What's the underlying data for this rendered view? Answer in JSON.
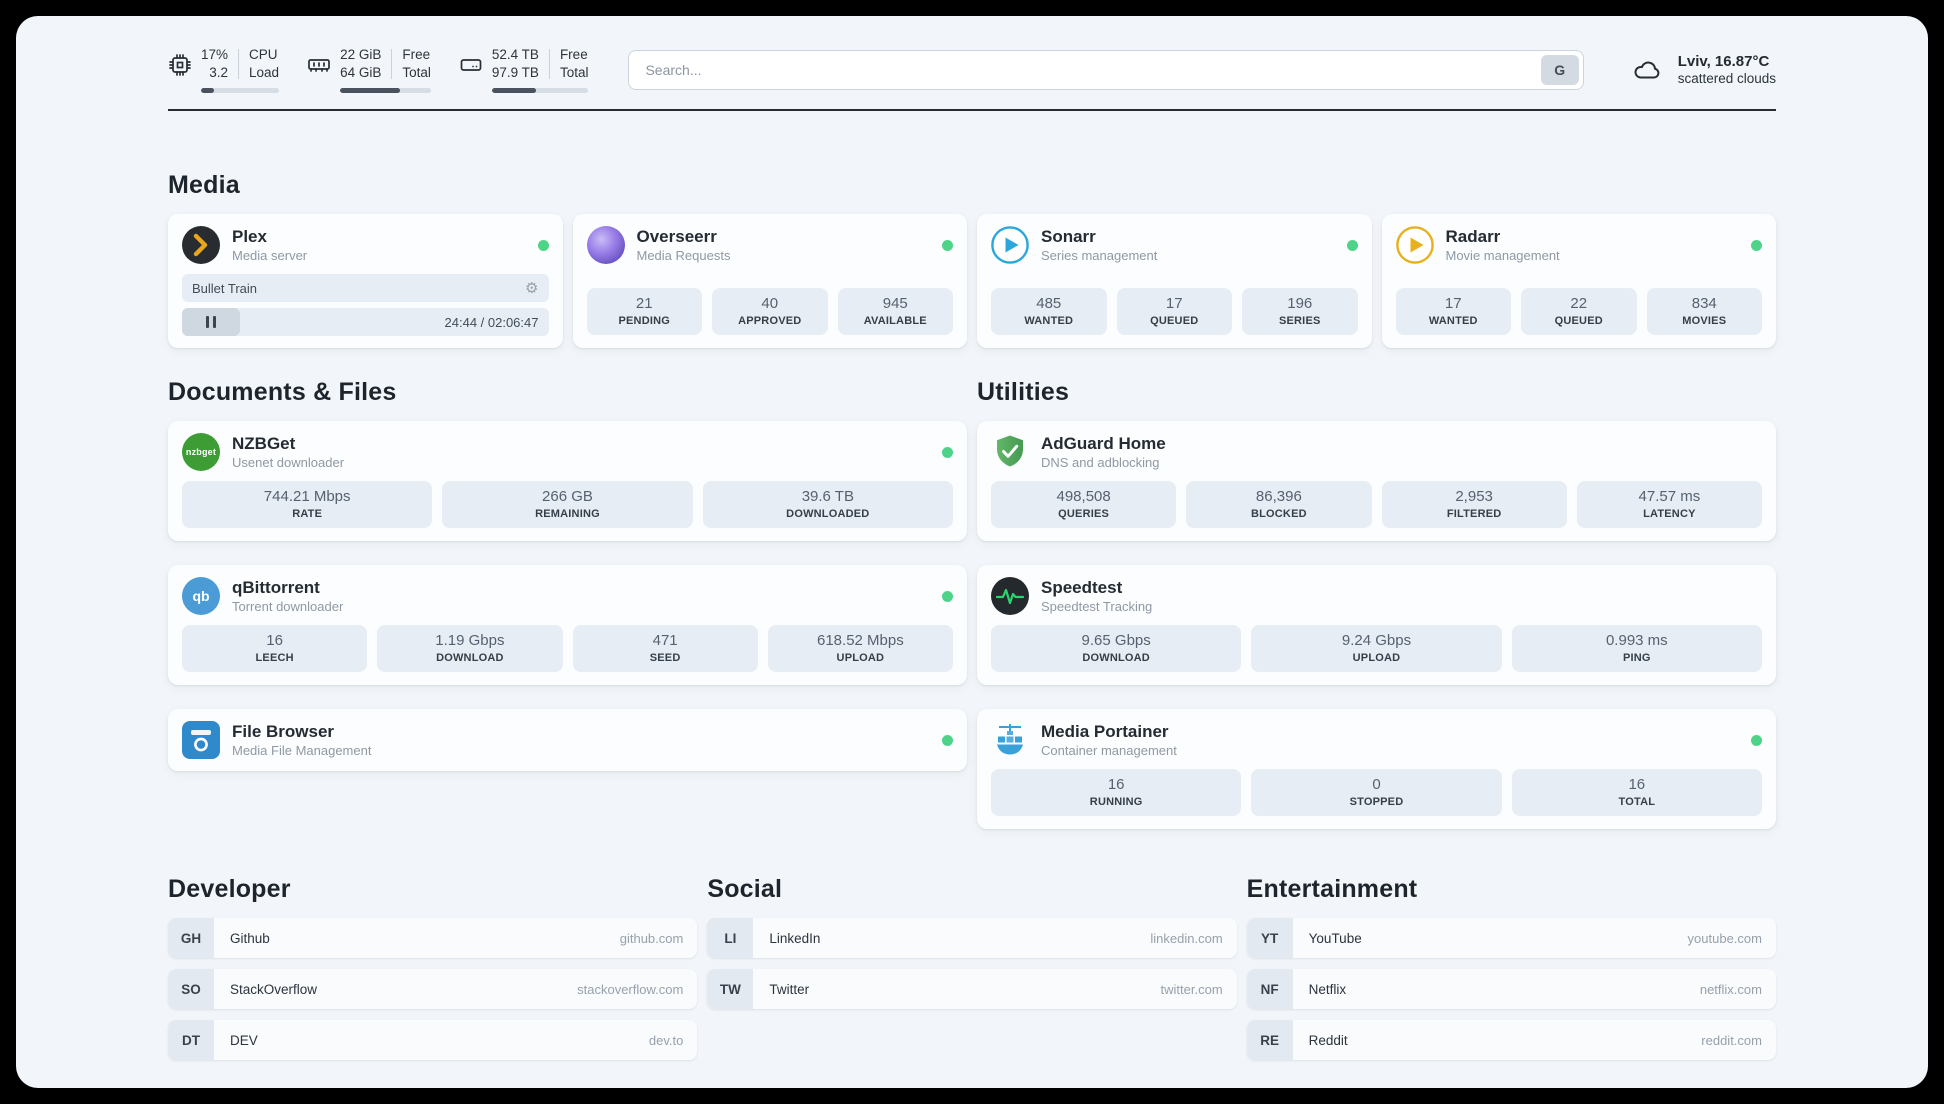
{
  "header": {
    "monitors": [
      {
        "value_top": "17%",
        "value_bottom": "3.2",
        "label_top": "CPU",
        "label_bottom": "Load",
        "progress": 17
      },
      {
        "value_top": "22 GiB",
        "value_bottom": "64 GiB",
        "label_top": "Free",
        "label_bottom": "Total",
        "progress": 66
      },
      {
        "value_top": "52.4 TB",
        "value_bottom": "97.9 TB",
        "label_top": "Free",
        "label_bottom": "Total",
        "progress": 46
      }
    ],
    "search": {
      "placeholder": "Search...",
      "button_label": "G",
      "value": ""
    },
    "weather": {
      "location": "Lviv, 16.87°C",
      "condition": "scattered clouds"
    }
  },
  "media": {
    "title": "Media",
    "plex": {
      "name": "Plex",
      "subtitle": "Media server",
      "online": true,
      "now_playing": "Bullet Train",
      "time": "24:44 / 02:06:47"
    },
    "overseerr": {
      "name": "Overseerr",
      "subtitle": "Media Requests",
      "online": true,
      "stats": [
        {
          "value": "21",
          "label": "PENDING"
        },
        {
          "value": "40",
          "label": "APPROVED"
        },
        {
          "value": "945",
          "label": "AVAILABLE"
        }
      ]
    },
    "sonarr": {
      "name": "Sonarr",
      "subtitle": "Series management",
      "online": true,
      "stats": [
        {
          "value": "485",
          "label": "WANTED"
        },
        {
          "value": "17",
          "label": "QUEUED"
        },
        {
          "value": "196",
          "label": "SERIES"
        }
      ]
    },
    "radarr": {
      "name": "Radarr",
      "subtitle": "Movie management",
      "online": true,
      "stats": [
        {
          "value": "17",
          "label": "WANTED"
        },
        {
          "value": "22",
          "label": "QUEUED"
        },
        {
          "value": "834",
          "label": "MOVIES"
        }
      ]
    }
  },
  "documents": {
    "title": "Documents & Files",
    "nzbget": {
      "name": "NZBGet",
      "subtitle": "Usenet downloader",
      "online": true,
      "stats": [
        {
          "value": "744.21 Mbps",
          "label": "RATE"
        },
        {
          "value": "266 GB",
          "label": "REMAINING"
        },
        {
          "value": "39.6 TB",
          "label": "DOWNLOADED"
        }
      ]
    },
    "qbittorrent": {
      "name": "qBittorrent",
      "subtitle": "Torrent downloader",
      "online": true,
      "stats": [
        {
          "value": "16",
          "label": "LEECH"
        },
        {
          "value": "1.19 Gbps",
          "label": "DOWNLOAD"
        },
        {
          "value": "471",
          "label": "SEED"
        },
        {
          "value": "618.52 Mbps",
          "label": "UPLOAD"
        }
      ]
    },
    "filebrowser": {
      "name": "File Browser",
      "subtitle": "Media File Management",
      "online": true
    }
  },
  "utilities": {
    "title": "Utilities",
    "adguard": {
      "name": "AdGuard Home",
      "subtitle": "DNS and adblocking",
      "online": false,
      "stats": [
        {
          "value": "498,508",
          "label": "QUERIES"
        },
        {
          "value": "86,396",
          "label": "BLOCKED"
        },
        {
          "value": "2,953",
          "label": "FILTERED"
        },
        {
          "value": "47.57 ms",
          "label": "LATENCY"
        }
      ]
    },
    "speedtest": {
      "name": "Speedtest",
      "subtitle": "Speedtest Tracking",
      "online": false,
      "stats": [
        {
          "value": "9.65 Gbps",
          "label": "DOWNLOAD"
        },
        {
          "value": "9.24 Gbps",
          "label": "UPLOAD"
        },
        {
          "value": "0.993 ms",
          "label": "PING"
        }
      ]
    },
    "portainer": {
      "name": "Media Portainer",
      "subtitle": "Container management",
      "online": true,
      "stats": [
        {
          "value": "16",
          "label": "RUNNING"
        },
        {
          "value": "0",
          "label": "STOPPED"
        },
        {
          "value": "16",
          "label": "TOTAL"
        }
      ]
    }
  },
  "bookmarks": {
    "developer": {
      "title": "Developer",
      "items": [
        {
          "abbr": "GH",
          "name": "Github",
          "url": "github.com"
        },
        {
          "abbr": "SO",
          "name": "StackOverflow",
          "url": "stackoverflow.com"
        },
        {
          "abbr": "DT",
          "name": "DEV",
          "url": "dev.to"
        }
      ]
    },
    "social": {
      "title": "Social",
      "items": [
        {
          "abbr": "LI",
          "name": "LinkedIn",
          "url": "linkedin.com"
        },
        {
          "abbr": "TW",
          "name": "Twitter",
          "url": "twitter.com"
        }
      ]
    },
    "entertainment": {
      "title": "Entertainment",
      "items": [
        {
          "abbr": "YT",
          "name": "YouTube",
          "url": "youtube.com"
        },
        {
          "abbr": "NF",
          "name": "Netflix",
          "url": "netflix.com"
        },
        {
          "abbr": "RE",
          "name": "Reddit",
          "url": "reddit.com"
        }
      ]
    }
  },
  "icons": {
    "gear": "⚙",
    "nzbget_text": "nzbget",
    "qbittorrent_text": "qb"
  },
  "colors": {
    "status_online": "#4ed389",
    "plex_accent": "#e8a71c",
    "overseerr_accent": "#7b5fd0",
    "sonarr_accent": "#2ba7dc",
    "radarr_accent": "#e9b01e",
    "nzbget_accent": "#3e9c35",
    "qbittorrent_accent": "#4a9bd6",
    "filebrowser_accent": "#3089cb",
    "adguard_accent": "#52a85c",
    "speedtest_accent": "#2dd36f",
    "portainer_accent": "#3aa0d8"
  }
}
